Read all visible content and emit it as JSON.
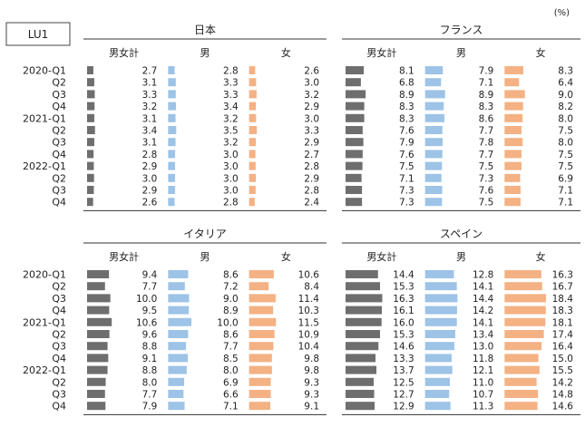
{
  "badge": "LU1",
  "unit": "(%)",
  "rows": [
    "2020-Q1",
    "Q2",
    "Q3",
    "Q4",
    "2021-Q1",
    "Q2",
    "Q3",
    "Q4",
    "2022-Q1",
    "Q2",
    "Q3",
    "Q4"
  ],
  "subheaders": [
    "男女計",
    "男",
    "女"
  ],
  "colors": {
    "total": "#6e6e6e",
    "male": "#9dc3e6",
    "female": "#f4b183",
    "rule": "#333333",
    "badge_border": "#444444"
  },
  "chart_data": [
    {
      "type": "bar",
      "title": "日本",
      "categories": [
        "2020-Q1",
        "Q2",
        "Q3",
        "Q4",
        "2021-Q1",
        "Q2",
        "Q3",
        "Q4",
        "2022-Q1",
        "Q2",
        "Q3",
        "Q4"
      ],
      "series": [
        {
          "name": "男女計",
          "values": [
            2.7,
            3.1,
            3.3,
            3.2,
            3.1,
            3.4,
            3.1,
            2.8,
            2.9,
            3.0,
            2.9,
            2.6
          ]
        },
        {
          "name": "男",
          "values": [
            2.8,
            3.3,
            3.3,
            3.4,
            3.2,
            3.5,
            3.2,
            3.0,
            3.0,
            3.0,
            3.0,
            2.8
          ]
        },
        {
          "name": "女",
          "values": [
            2.6,
            3.0,
            3.2,
            2.9,
            3.0,
            3.3,
            2.9,
            2.7,
            2.8,
            2.9,
            2.8,
            2.4
          ]
        }
      ],
      "scale_max": 20
    },
    {
      "type": "bar",
      "title": "フランス",
      "categories": [
        "2020-Q1",
        "Q2",
        "Q3",
        "Q4",
        "2021-Q1",
        "Q2",
        "Q3",
        "Q4",
        "2022-Q1",
        "Q2",
        "Q3",
        "Q4"
      ],
      "series": [
        {
          "name": "男女計",
          "values": [
            8.1,
            6.8,
            8.9,
            8.3,
            8.3,
            7.6,
            7.9,
            7.6,
            7.5,
            7.1,
            7.3,
            7.3
          ]
        },
        {
          "name": "男",
          "values": [
            7.9,
            7.1,
            8.9,
            8.3,
            8.6,
            7.7,
            7.8,
            7.7,
            7.5,
            7.3,
            7.6,
            7.5
          ]
        },
        {
          "name": "女",
          "values": [
            8.3,
            6.4,
            9.0,
            8.2,
            8.0,
            7.5,
            8.0,
            7.5,
            7.5,
            6.9,
            7.1,
            7.1
          ]
        }
      ],
      "scale_max": 20
    },
    {
      "type": "bar",
      "title": "イタリア",
      "categories": [
        "2020-Q1",
        "Q2",
        "Q3",
        "Q4",
        "2021-Q1",
        "Q2",
        "Q3",
        "Q4",
        "2022-Q1",
        "Q2",
        "Q3",
        "Q4"
      ],
      "series": [
        {
          "name": "男女計",
          "values": [
            9.4,
            7.7,
            10.0,
            9.5,
            10.6,
            9.6,
            8.8,
            9.1,
            8.8,
            8.0,
            7.7,
            7.9
          ]
        },
        {
          "name": "男",
          "values": [
            8.6,
            7.2,
            9.0,
            8.9,
            10.0,
            8.6,
            7.7,
            8.5,
            8.0,
            6.9,
            6.6,
            7.1
          ]
        },
        {
          "name": "女",
          "values": [
            10.6,
            8.4,
            11.4,
            10.3,
            11.5,
            10.9,
            10.4,
            9.8,
            9.8,
            9.3,
            9.3,
            9.1
          ]
        }
      ],
      "scale_max": 20
    },
    {
      "type": "bar",
      "title": "スペイン",
      "categories": [
        "2020-Q1",
        "Q2",
        "Q3",
        "Q4",
        "2021-Q1",
        "Q2",
        "Q3",
        "Q4",
        "2022-Q1",
        "Q2",
        "Q3",
        "Q4"
      ],
      "series": [
        {
          "name": "男女計",
          "values": [
            14.4,
            15.3,
            16.3,
            16.1,
            16.0,
            15.3,
            14.6,
            13.3,
            13.7,
            12.5,
            12.7,
            12.9
          ]
        },
        {
          "name": "男",
          "values": [
            12.8,
            14.1,
            14.4,
            14.2,
            14.1,
            13.4,
            13.0,
            11.8,
            12.1,
            11.0,
            10.7,
            11.3
          ]
        },
        {
          "name": "女",
          "values": [
            16.3,
            16.7,
            18.4,
            18.3,
            18.1,
            17.4,
            16.4,
            15.0,
            15.5,
            14.2,
            14.8,
            14.6
          ]
        }
      ],
      "scale_max": 20
    }
  ]
}
